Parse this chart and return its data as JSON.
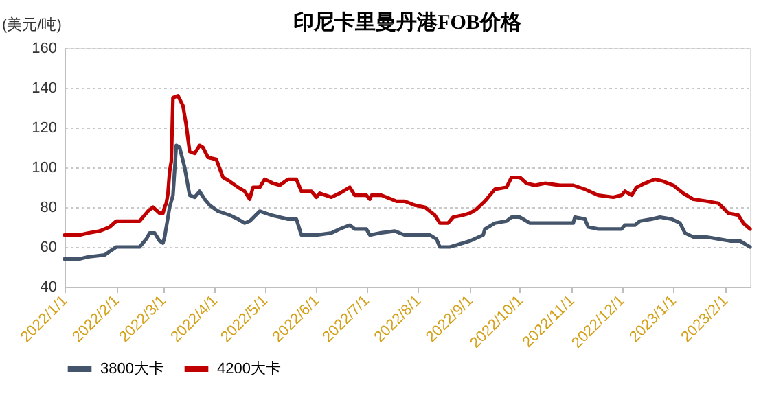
{
  "chart_data": {
    "type": "line",
    "title": "印尼卡里曼丹港FOB价格",
    "ylabel": "(美元/吨)",
    "ylim": [
      40,
      160
    ],
    "yticks": [
      40,
      60,
      80,
      100,
      120,
      140,
      160
    ],
    "xlim": [
      "2022-01-01",
      "2023-02-16"
    ],
    "xticks": [
      {
        "value": "2022-01-01",
        "label": "2022/1/1"
      },
      {
        "value": "2022-02-01",
        "label": "2022/2/1"
      },
      {
        "value": "2022-03-01",
        "label": "2022/3/1"
      },
      {
        "value": "2022-04-01",
        "label": "2022/4/1"
      },
      {
        "value": "2022-05-01",
        "label": "2022/5/1"
      },
      {
        "value": "2022-06-01",
        "label": "2022/6/1"
      },
      {
        "value": "2022-07-01",
        "label": "2022/7/1"
      },
      {
        "value": "2022-08-01",
        "label": "2022/8/1"
      },
      {
        "value": "2022-09-01",
        "label": "2022/9/1"
      },
      {
        "value": "2022-10-01",
        "label": "2022/10/1"
      },
      {
        "value": "2022-11-01",
        "label": "2022/11/1"
      },
      {
        "value": "2022-12-01",
        "label": "2022/12/1"
      },
      {
        "value": "2023-01-01",
        "label": "2023/1/1"
      },
      {
        "value": "2023-02-01",
        "label": "2023/2/1"
      }
    ],
    "grid": "y",
    "legend": "bottom",
    "line_style": "solid",
    "marker": "none",
    "series": [
      {
        "name": "3800大卡",
        "color": "#44546a",
        "x": [
          "2022-01-01",
          "2022-01-10",
          "2022-01-15",
          "2022-01-25",
          "2022-02-01",
          "2022-02-15",
          "2022-02-19",
          "2022-02-21",
          "2022-02-24",
          "2022-02-27",
          "2022-03-01",
          "2022-03-02",
          "2022-03-05",
          "2022-03-07",
          "2022-03-09",
          "2022-03-11",
          "2022-03-14",
          "2022-03-17",
          "2022-03-20",
          "2022-03-23",
          "2022-03-26",
          "2022-03-29",
          "2022-04-03",
          "2022-04-10",
          "2022-04-15",
          "2022-04-19",
          "2022-04-22",
          "2022-04-28",
          "2022-05-05",
          "2022-05-10",
          "2022-05-15",
          "2022-05-20",
          "2022-05-23",
          "2022-06-01",
          "2022-06-10",
          "2022-06-15",
          "2022-06-21",
          "2022-06-24",
          "2022-07-01",
          "2022-07-03",
          "2022-07-09",
          "2022-07-18",
          "2022-07-24",
          "2022-07-30",
          "2022-08-08",
          "2022-08-12",
          "2022-08-14",
          "2022-08-20",
          "2022-08-28",
          "2022-09-01",
          "2022-09-09",
          "2022-09-10",
          "2022-09-16",
          "2022-09-23",
          "2022-09-26",
          "2022-10-01",
          "2022-10-07",
          "2022-10-16",
          "2022-10-25",
          "2022-11-02",
          "2022-11-03",
          "2022-11-09",
          "2022-11-11",
          "2022-11-17",
          "2022-12-01",
          "2022-12-03",
          "2022-12-09",
          "2022-12-12",
          "2022-12-19",
          "2022-12-24",
          "2022-12-31",
          "2023-01-05",
          "2023-01-08",
          "2023-01-13",
          "2023-01-21",
          "2023-01-28",
          "2023-02-04",
          "2023-02-10",
          "2023-02-16"
        ],
        "values": [
          54,
          54,
          55,
          56,
          60,
          60,
          64,
          67,
          67,
          63,
          62,
          65,
          80,
          86,
          111,
          110,
          100,
          86,
          85,
          88,
          84,
          81,
          78,
          76,
          74,
          72,
          73,
          78,
          76,
          75,
          74,
          74,
          66,
          66,
          67,
          69,
          71,
          69,
          69,
          66,
          67,
          68,
          66,
          66,
          66,
          64,
          60,
          60,
          62,
          63,
          66,
          69,
          72,
          73,
          75,
          75,
          72,
          72,
          72,
          72,
          75,
          74,
          70,
          69,
          69,
          71,
          71,
          73,
          74,
          75,
          74,
          72,
          67,
          65,
          65,
          64,
          63,
          63,
          60
        ]
      },
      {
        "name": "4200大卡",
        "color": "#c00000",
        "x": [
          "2022-01-01",
          "2022-01-10",
          "2022-01-15",
          "2022-01-22",
          "2022-01-28",
          "2022-02-01",
          "2022-02-15",
          "2022-02-20",
          "2022-02-23",
          "2022-02-27",
          "2022-03-01",
          "2022-03-02",
          "2022-03-03",
          "2022-03-04",
          "2022-03-05",
          "2022-03-06",
          "2022-03-07",
          "2022-03-10",
          "2022-03-13",
          "2022-03-15",
          "2022-03-17",
          "2022-03-20",
          "2022-03-23",
          "2022-03-25",
          "2022-03-28",
          "2022-04-02",
          "2022-04-06",
          "2022-04-10",
          "2022-04-15",
          "2022-04-19",
          "2022-04-22",
          "2022-04-24",
          "2022-04-28",
          "2022-05-01",
          "2022-05-06",
          "2022-05-10",
          "2022-05-15",
          "2022-05-20",
          "2022-05-23",
          "2022-05-29",
          "2022-06-01",
          "2022-06-03",
          "2022-06-10",
          "2022-06-15",
          "2022-06-21",
          "2022-06-24",
          "2022-07-01",
          "2022-07-03",
          "2022-07-04",
          "2022-07-10",
          "2022-07-16",
          "2022-07-19",
          "2022-07-24",
          "2022-07-30",
          "2022-08-05",
          "2022-08-11",
          "2022-08-14",
          "2022-08-19",
          "2022-08-22",
          "2022-08-28",
          "2022-09-01",
          "2022-09-05",
          "2022-09-10",
          "2022-09-16",
          "2022-09-23",
          "2022-09-26",
          "2022-10-01",
          "2022-10-05",
          "2022-10-10",
          "2022-10-16",
          "2022-10-25",
          "2022-11-02",
          "2022-11-09",
          "2022-11-17",
          "2022-11-26",
          "2022-12-01",
          "2022-12-03",
          "2022-12-07",
          "2022-12-10",
          "2022-12-15",
          "2022-12-21",
          "2022-12-26",
          "2023-01-01",
          "2023-01-07",
          "2023-01-13",
          "2023-01-21",
          "2023-01-28",
          "2023-02-03",
          "2023-02-09",
          "2023-02-12",
          "2023-02-16"
        ],
        "values": [
          66,
          66,
          67,
          68,
          70,
          73,
          73,
          78,
          80,
          77,
          77,
          80,
          82,
          87,
          98,
          103,
          135,
          136,
          131,
          121,
          108,
          107,
          111,
          110,
          105,
          104,
          95,
          93,
          90,
          88,
          84,
          90,
          90,
          94,
          92,
          91,
          94,
          94,
          88,
          88,
          85,
          87,
          85,
          87,
          90,
          86,
          86,
          84,
          86,
          86,
          84,
          83,
          83,
          81,
          80,
          76,
          72,
          72,
          75,
          76,
          77,
          79,
          83,
          89,
          90,
          95,
          95,
          92,
          91,
          92,
          91,
          91,
          89,
          86,
          85,
          86,
          88,
          86,
          90,
          92,
          94,
          93,
          91,
          87,
          84,
          83,
          82,
          77,
          76,
          72,
          69
        ]
      }
    ]
  }
}
